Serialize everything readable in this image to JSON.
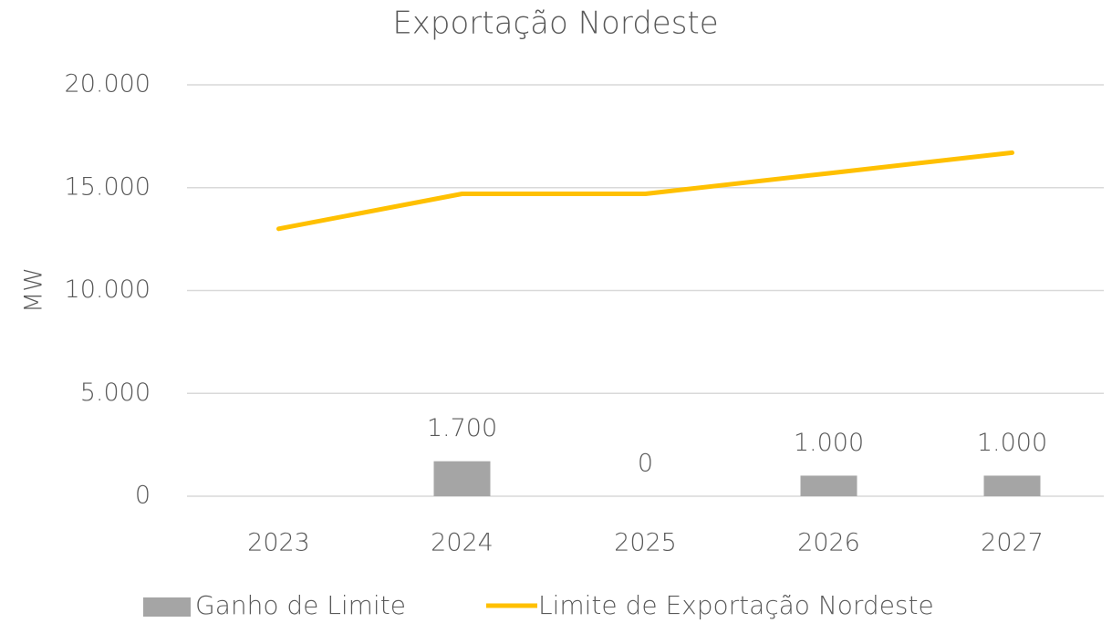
{
  "chart_data": {
    "type": "combo",
    "title": "Exportação Nordeste",
    "y_label": "MW",
    "categories": [
      "2023",
      "2024",
      "2025",
      "2026",
      "2027"
    ],
    "series": [
      {
        "name": "Ganho de Limite",
        "type": "bar",
        "color": "#a5a5a5",
        "values": [
          null,
          1700,
          0,
          1000,
          1000
        ],
        "value_labels": [
          null,
          "1.700",
          "0",
          "1.000",
          "1.000"
        ]
      },
      {
        "name": "Limite de Exportação Nordeste",
        "type": "line",
        "color": "#ffc000",
        "values": [
          13000,
          14700,
          14700,
          15700,
          16700
        ]
      }
    ],
    "ylim": [
      0,
      20000
    ],
    "yticks": [
      0,
      {
        "value": 5000,
        "label": "5.000"
      },
      {
        "value": 10000,
        "label": "10.000"
      },
      {
        "value": 15000,
        "label": "15.000"
      },
      {
        "value": 20000,
        "label": "20.000"
      }
    ],
    "grid": true,
    "legend": "bottom"
  }
}
